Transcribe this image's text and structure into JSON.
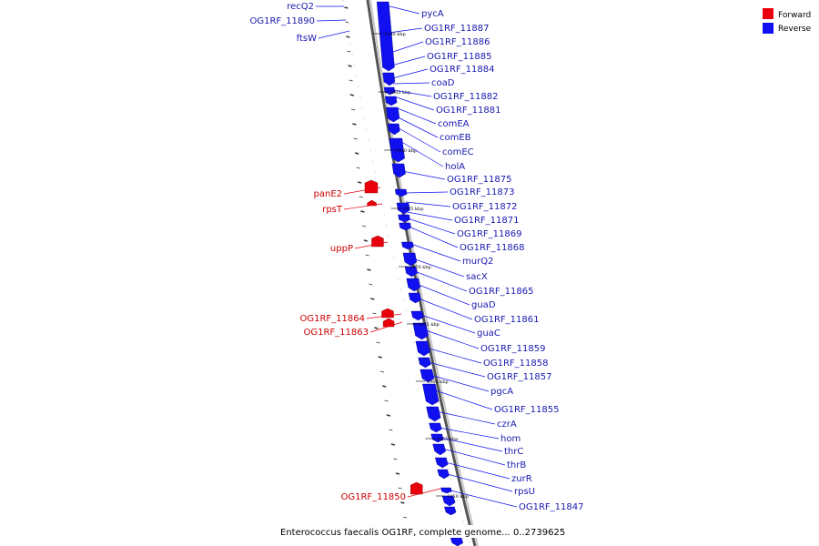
{
  "caption": "Enterococcus faecalis OG1RF, complete genome... 0..2739625",
  "legend": [
    {
      "label": "Forward",
      "color": "#e8000b"
    },
    {
      "label": "Reverse",
      "color": "#1010f0"
    }
  ],
  "colors": {
    "forward": "#e8000b",
    "reverse": "#1010f0",
    "backbone": "#8a8a8a"
  },
  "kbp_ticks": [
    "1990 kbp",
    "1985 kbp",
    "1980 kbp",
    "1975 kbp",
    "1970 kbp",
    "1965 kbp",
    "1960 kbp",
    "1955 kbp",
    "1950 kbp"
  ],
  "reverse_genes": [
    "pycA",
    "OG1RF_11887",
    "OG1RF_11886",
    "OG1RF_11885",
    "OG1RF_11884",
    "coaD",
    "OG1RF_11882",
    "OG1RF_11881",
    "comEA",
    "comEB",
    "comEC",
    "holA",
    "OG1RF_11875",
    "OG1RF_11873",
    "OG1RF_11872",
    "OG1RF_11871",
    "OG1RF_11869",
    "OG1RF_11868",
    "murQ2",
    "sacX",
    "OG1RF_11865",
    "guaD",
    "OG1RF_11861",
    "guaC",
    "OG1RF_11859",
    "OG1RF_11858",
    "OG1RF_11857",
    "pgcA",
    "OG1RF_11855",
    "czrA",
    "hom",
    "thrC",
    "thrB",
    "zurR",
    "rpsU",
    "OG1RF_11847"
  ],
  "forward_genes": [
    "panE2",
    "rpsT",
    "uppP",
    "OG1RF_11864",
    "OG1RF_11863",
    "OG1RF_11850"
  ],
  "top_left_genes": [
    "recQ2",
    "OG1RF_11890",
    "ftsW"
  ]
}
